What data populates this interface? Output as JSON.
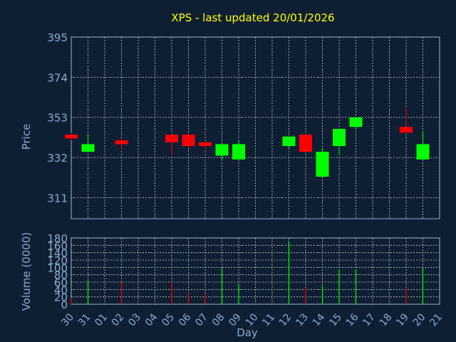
{
  "chart_data": {
    "type": "candlestick",
    "title": "XPS - last updated 20/01/2026",
    "xlabel": "Day",
    "x_tick_labels": [
      "30",
      "31",
      "01",
      "02",
      "03",
      "04",
      "05",
      "06",
      "07",
      "08",
      "09",
      "10",
      "11",
      "12",
      "13",
      "14",
      "15",
      "16",
      "17",
      "18",
      "19",
      "20",
      "21"
    ],
    "price_panel": {
      "ylabel": "Price",
      "ylim": [
        300,
        395
      ],
      "y_ticks": [
        311,
        332,
        353,
        374,
        395
      ],
      "grid": true
    },
    "volume_panel": {
      "ylabel": "Volume (0000)",
      "ylim": [
        0,
        180
      ],
      "y_ticks": [
        0,
        20,
        40,
        60,
        80,
        100,
        120,
        140,
        160,
        180
      ],
      "grid": true
    },
    "candles": [
      {
        "day": "30",
        "open": 344,
        "close": 342,
        "high": 345,
        "low": 341,
        "volume": 18
      },
      {
        "day": "31",
        "open": 335,
        "close": 339,
        "high": 344,
        "low": 335,
        "volume": 65
      },
      {
        "day": "02",
        "open": 341,
        "close": 339,
        "high": 342,
        "low": 336,
        "volume": 62
      },
      {
        "day": "05",
        "open": 344,
        "close": 340,
        "high": 344,
        "low": 333,
        "volume": 60
      },
      {
        "day": "06",
        "open": 344,
        "close": 338,
        "high": 344,
        "low": 337,
        "volume": 32
      },
      {
        "day": "07",
        "open": 340,
        "close": 338,
        "high": 340,
        "low": 336,
        "volume": 30
      },
      {
        "day": "08",
        "open": 333,
        "close": 339,
        "high": 339,
        "low": 331,
        "volume": 98
      },
      {
        "day": "09",
        "open": 331,
        "close": 339,
        "high": 341,
        "low": 331,
        "volume": 55
      },
      {
        "day": "12",
        "open": 338,
        "close": 343,
        "high": 343,
        "low": 337,
        "volume": 170
      },
      {
        "day": "13",
        "open": 344,
        "close": 335,
        "high": 344,
        "low": 335,
        "volume": 45
      },
      {
        "day": "14",
        "open": 322,
        "close": 335,
        "high": 337,
        "low": 322,
        "volume": 50
      },
      {
        "day": "15",
        "open": 338,
        "close": 347,
        "high": 347,
        "low": 333,
        "volume": 95
      },
      {
        "day": "16",
        "open": 348,
        "close": 353,
        "high": 353,
        "low": 347,
        "volume": 95
      },
      {
        "day": "19",
        "open": 348,
        "close": 345,
        "high": 358,
        "low": 345,
        "volume": 42
      },
      {
        "day": "20",
        "open": 331,
        "close": 339,
        "high": 346,
        "low": 331,
        "volume": 100
      }
    ],
    "colors": {
      "background": "#0f1f33",
      "title": "#ffff00",
      "axis_text": "#8fa8c8",
      "plot_border": "#8fa8c8",
      "grid": "#c0c8d0",
      "up": "#00ff00",
      "down": "#ff0000"
    }
  }
}
